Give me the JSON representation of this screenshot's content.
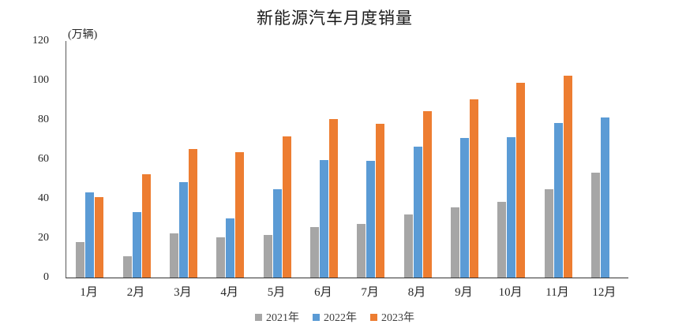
{
  "page": {
    "background": "#ffffff"
  },
  "chart_data": {
    "type": "bar",
    "title": "新能源汽车月度销量",
    "xlabel": "",
    "ylabel": "(万辆)",
    "categories": [
      "1月",
      "2月",
      "3月",
      "4月",
      "5月",
      "6月",
      "7月",
      "8月",
      "9月",
      "10月",
      "11月",
      "12月"
    ],
    "series": [
      {
        "name": "2021年",
        "color": "#a6a6a6",
        "values": [
          17.9,
          11.0,
          22.6,
          20.6,
          21.7,
          25.6,
          27.1,
          32.1,
          35.7,
          38.3,
          45.0,
          53.1
        ]
      },
      {
        "name": "2022年",
        "color": "#5b9bd5",
        "values": [
          43.1,
          33.4,
          48.4,
          29.9,
          44.7,
          59.6,
          59.3,
          66.6,
          70.8,
          71.4,
          78.6,
          81.4
        ]
      },
      {
        "name": "2023年",
        "color": "#ed7d31",
        "values": [
          40.8,
          52.5,
          65.3,
          63.6,
          71.7,
          80.6,
          78.0,
          84.6,
          90.4,
          98.9,
          102.6,
          null
        ]
      }
    ],
    "ylim": [
      0,
      120
    ],
    "yticks": [
      0,
      20,
      40,
      60,
      80,
      100,
      120
    ],
    "grid": false,
    "legend_position": "bottom",
    "axis_color": "#595959",
    "text_color": "#262626"
  }
}
